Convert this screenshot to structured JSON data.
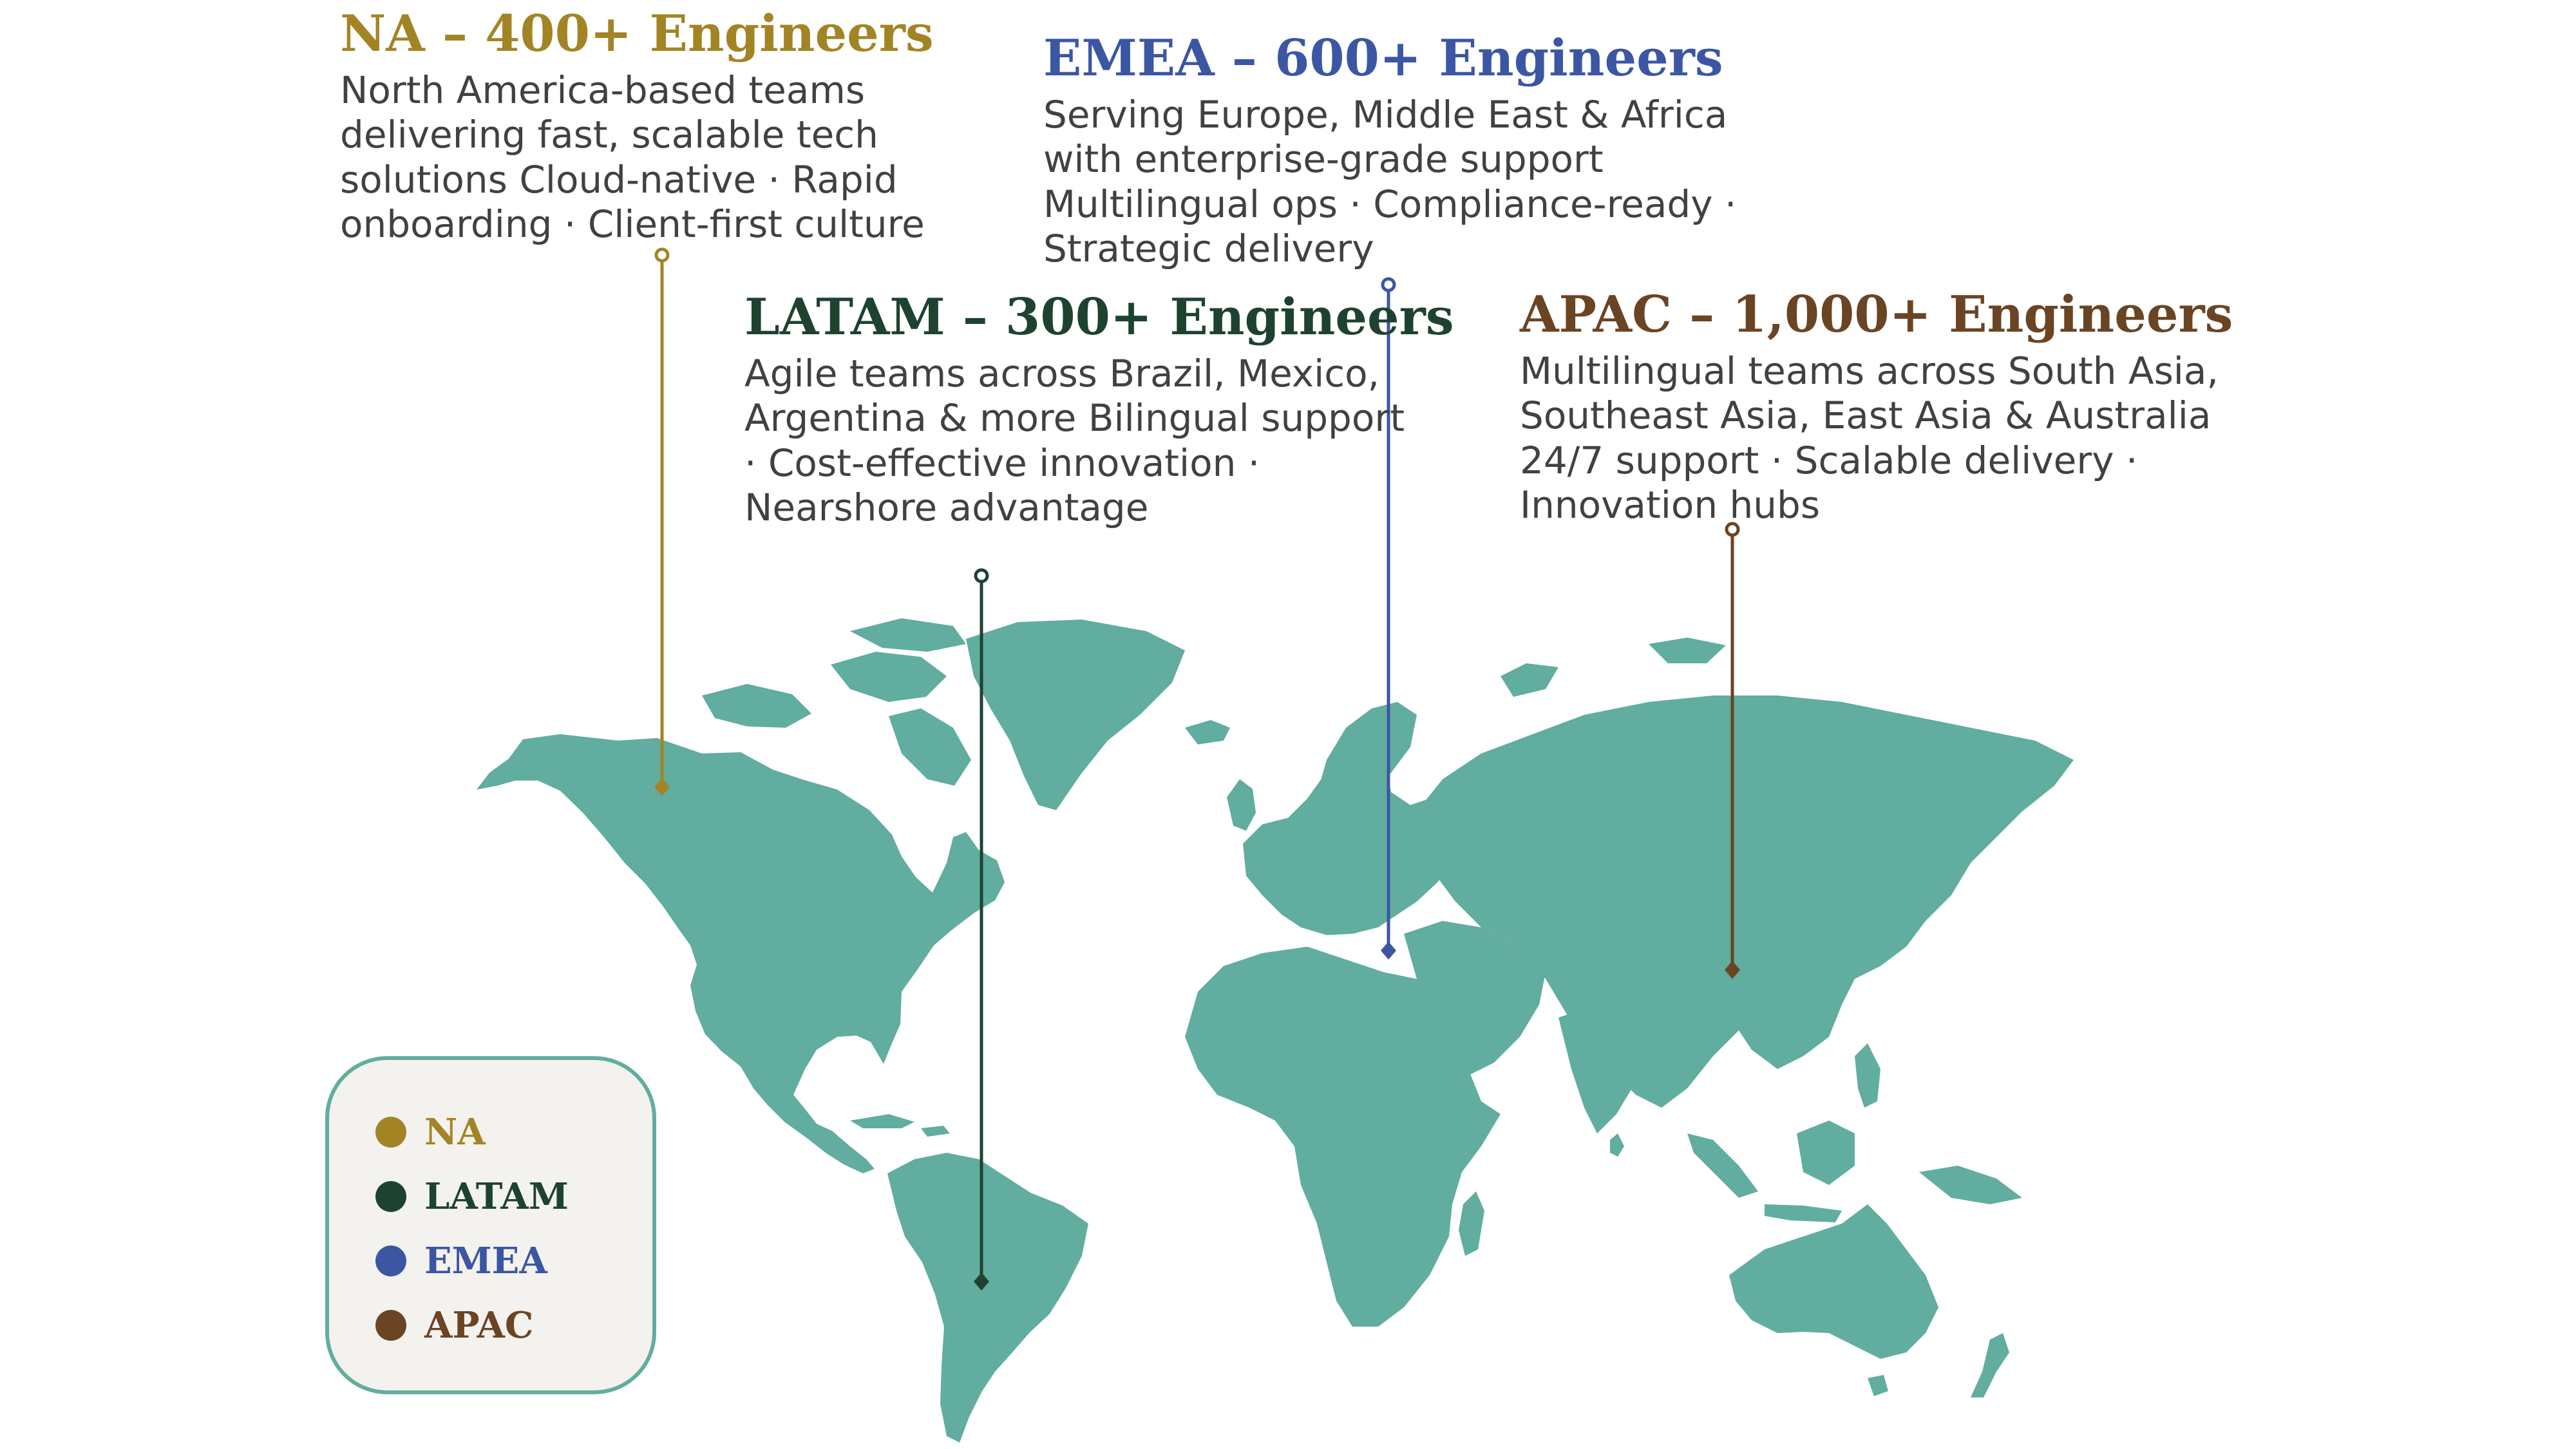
{
  "regions": {
    "na": {
      "title": "NA – 400+ Engineers",
      "description": "North America-based teams delivering fast, scalable tech solutions Cloud-native · Rapid onboarding · Client-first culture",
      "color": "#a38425"
    },
    "emea": {
      "title": "EMEA – 600+ Engineers",
      "description": "Serving Europe, Middle East & Africa with enterprise-grade support Multilingual ops · Compliance-ready · Strategic delivery",
      "color": "#3b56a3"
    },
    "latam": {
      "title": "LATAM – 300+ Engineers",
      "description": "Agile teams across Brazil, Mexico, Argentina & more Bilingual support · Cost-effective innovation · Nearshore advantage",
      "color": "#1d4330"
    },
    "apac": {
      "title": "APAC – 1,000+ Engineers",
      "description": "Multilingual teams across South Asia, Southeast Asia, East Asia & Australia 24/7 support · Scalable delivery · Innovation hubs",
      "color": "#6b4424"
    }
  },
  "legend": [
    {
      "label": "NA",
      "color": "#a38425"
    },
    {
      "label": "LATAM",
      "color": "#1d4330"
    },
    {
      "label": "EMEA",
      "color": "#3b56a3"
    },
    {
      "label": "APAC",
      "color": "#6b4424"
    }
  ],
  "map": {
    "land_color": "#61ad9f"
  }
}
